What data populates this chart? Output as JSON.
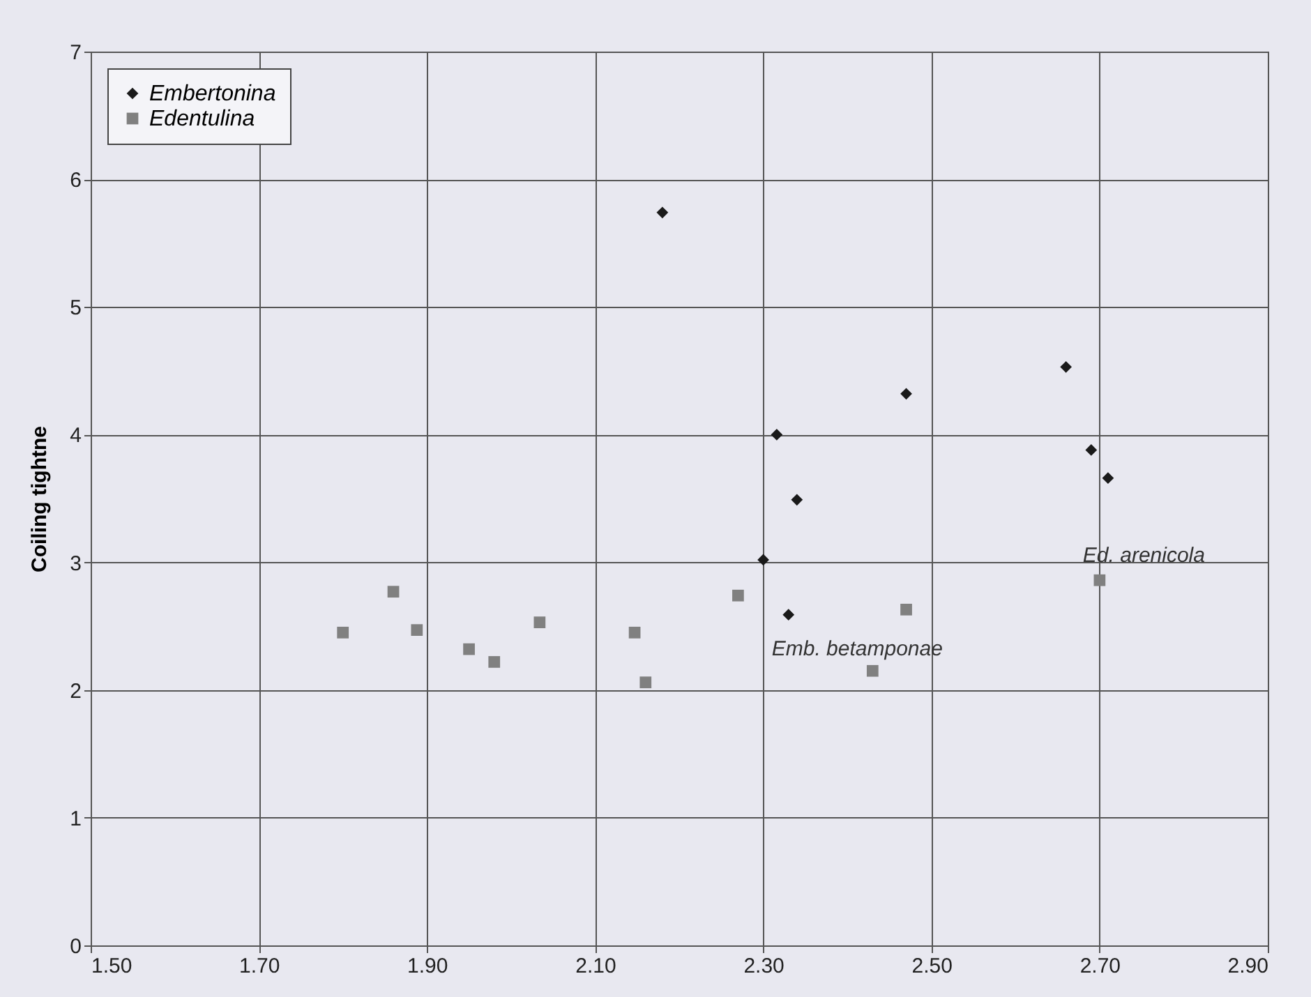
{
  "chart_data": {
    "type": "scatter",
    "ylabel": "Coiling tightne",
    "xlim": [
      1.5,
      2.9
    ],
    "ylim": [
      0,
      7
    ],
    "xticks": [
      {
        "value": 1.5,
        "label": "1.50"
      },
      {
        "value": 1.7,
        "label": "1.70"
      },
      {
        "value": 1.9,
        "label": "1.90"
      },
      {
        "value": 2.1,
        "label": "2.10"
      },
      {
        "value": 2.3,
        "label": "2.30"
      },
      {
        "value": 2.5,
        "label": "2.50"
      },
      {
        "value": 2.7,
        "label": "2.70"
      },
      {
        "value": 2.9,
        "label": "2.90"
      }
    ],
    "yticks": [
      0,
      1,
      2,
      3,
      4,
      5,
      6,
      7
    ],
    "grid": true,
    "legend": "top left",
    "series": [
      {
        "name": "Embertonina",
        "color": "#1a1a1a",
        "marker": "diamond",
        "x": [
          2.18,
          2.316,
          2.34,
          2.3,
          2.33,
          2.47,
          2.66,
          2.69,
          2.71
        ],
        "values": [
          5.74,
          4.0,
          3.49,
          3.02,
          2.59,
          4.32,
          4.53,
          3.88,
          3.66
        ]
      },
      {
        "name": "Edentulina",
        "color": "#808080",
        "marker": "square",
        "x": [
          1.8,
          1.86,
          1.888,
          1.95,
          1.98,
          2.034,
          2.147,
          2.16,
          2.27,
          2.47,
          2.43,
          2.7
        ],
        "values": [
          2.45,
          2.77,
          2.47,
          2.32,
          2.22,
          2.53,
          2.45,
          2.06,
          2.74,
          2.63,
          2.15,
          2.86
        ]
      }
    ],
    "annotations": [
      {
        "text": "Emb. betamponae",
        "x": 2.33,
        "y": 2.59
      },
      {
        "text": "Ed. arenicola",
        "x": 2.7,
        "y": 2.86
      }
    ]
  }
}
